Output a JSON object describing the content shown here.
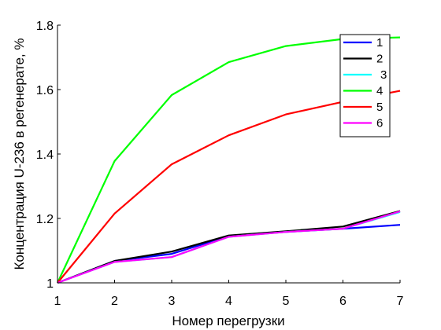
{
  "chart_data": {
    "type": "line",
    "title": "",
    "xlabel": "Номер перегрузки",
    "ylabel": "Концентрация U-236 в регенерате, %",
    "x": [
      1,
      2,
      3,
      4,
      5,
      6,
      7
    ],
    "xlim": [
      1,
      7
    ],
    "ylim": [
      1,
      1.8
    ],
    "xticks": [
      "1",
      "2",
      "3",
      "4",
      "5",
      "6",
      "7"
    ],
    "yticks": [
      "1",
      "1.2",
      "1.4",
      "1.6",
      "1.8"
    ],
    "grid": false,
    "legend_position": "top-right",
    "series": [
      {
        "name": "1",
        "color": "#0000ff",
        "values": [
          1.0,
          1.068,
          1.09,
          1.145,
          1.158,
          1.168,
          1.18
        ]
      },
      {
        "name": "2",
        "color": "#000000",
        "values": [
          1.0,
          1.068,
          1.097,
          1.147,
          1.16,
          1.175,
          1.223
        ]
      },
      {
        "name": "3",
        "color": "#00ffff",
        "values": [
          1.0,
          1.065,
          1.08,
          1.143,
          1.158,
          1.168,
          1.22
        ]
      },
      {
        "name": "4",
        "color": "#00ff00",
        "values": [
          1.0,
          1.378,
          1.583,
          1.685,
          1.735,
          1.757,
          1.762
        ]
      },
      {
        "name": "5",
        "color": "#ff0000",
        "values": [
          1.0,
          1.215,
          1.368,
          1.458,
          1.523,
          1.562,
          1.596
        ]
      },
      {
        "name": "6",
        "color": "#ff00ff",
        "values": [
          1.0,
          1.065,
          1.08,
          1.143,
          1.158,
          1.168,
          1.222
        ]
      }
    ]
  }
}
